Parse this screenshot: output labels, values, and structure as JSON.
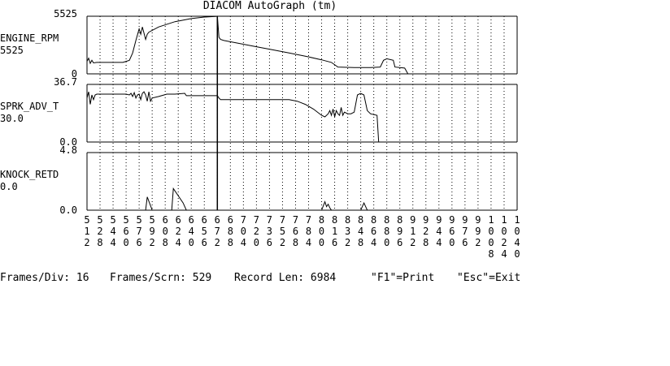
{
  "window": {
    "title": "DIACOM AutoGraph (tm)"
  },
  "status_bar": {
    "frames_div": "Frames/Div: 16",
    "frames_scrn": "Frames/Scrn: 529",
    "record_len": "Record Len: 6984",
    "print_hint": "\"F1\"=Print",
    "exit_hint": "\"Esc\"=Exit"
  },
  "chart_data": {
    "type": "line",
    "title": "DIACOM AutoGraph (tm)",
    "x_ticks": [
      "512",
      "528",
      "544",
      "560",
      "576",
      "592",
      "608",
      "624",
      "640",
      "656",
      "672",
      "688",
      "704",
      "720",
      "736",
      "752",
      "768",
      "784",
      "800",
      "816",
      "832",
      "848",
      "864",
      "880",
      "896",
      "912",
      "928",
      "944",
      "960",
      "976",
      "992",
      "1008",
      "1024",
      "1040"
    ],
    "cursor_x": 672,
    "grid": "vertical dotted",
    "panels": [
      {
        "name": "ENGINE_RPM",
        "current": "5525",
        "ymax_label": "5525",
        "ymin_label": "0",
        "ylim": [
          0,
          5525
        ],
        "points": [
          [
            512,
            1200
          ],
          [
            514,
            1500
          ],
          [
            516,
            1000
          ],
          [
            518,
            1300
          ],
          [
            520,
            1050
          ],
          [
            524,
            1100
          ],
          [
            528,
            1100
          ],
          [
            544,
            1100
          ],
          [
            556,
            1100
          ],
          [
            560,
            1200
          ],
          [
            564,
            1300
          ],
          [
            568,
            2000
          ],
          [
            572,
            3200
          ],
          [
            576,
            4300
          ],
          [
            578,
            3800
          ],
          [
            580,
            4500
          ],
          [
            582,
            3900
          ],
          [
            584,
            3300
          ],
          [
            586,
            3800
          ],
          [
            588,
            4000
          ],
          [
            600,
            4500
          ],
          [
            620,
            5000
          ],
          [
            640,
            5300
          ],
          [
            656,
            5450
          ],
          [
            670,
            5500
          ],
          [
            672,
            5525
          ],
          [
            674,
            3500
          ],
          [
            676,
            3300
          ],
          [
            680,
            3200
          ],
          [
            700,
            2900
          ],
          [
            720,
            2600
          ],
          [
            740,
            2300
          ],
          [
            760,
            2000
          ],
          [
            780,
            1700
          ],
          [
            800,
            1350
          ],
          [
            812,
            1100
          ],
          [
            820,
            650
          ],
          [
            840,
            600
          ],
          [
            860,
            600
          ],
          [
            872,
            650
          ],
          [
            876,
            1300
          ],
          [
            880,
            1450
          ],
          [
            888,
            1300
          ],
          [
            890,
            650
          ],
          [
            896,
            600
          ],
          [
            902,
            550
          ],
          [
            906,
            0
          ],
          [
            912,
            0
          ],
          [
            1040,
            0
          ]
        ]
      },
      {
        "name": "SPRK_ADV_T",
        "current": "30.0",
        "ymax_label": "36.7",
        "ymin_label": "0.0",
        "ylim": [
          0,
          36.7
        ],
        "points": [
          [
            512,
            28
          ],
          [
            514,
            32
          ],
          [
            516,
            24
          ],
          [
            518,
            30
          ],
          [
            520,
            27
          ],
          [
            522,
            30
          ],
          [
            524,
            30.5
          ],
          [
            540,
            30.5
          ],
          [
            560,
            30.5
          ],
          [
            564,
            30
          ],
          [
            566,
            31
          ],
          [
            568,
            29
          ],
          [
            570,
            31.5
          ],
          [
            572,
            28
          ],
          [
            574,
            30
          ],
          [
            576,
            30.5
          ],
          [
            578,
            27
          ],
          [
            580,
            31
          ],
          [
            582,
            32
          ],
          [
            584,
            30
          ],
          [
            586,
            26
          ],
          [
            588,
            32
          ],
          [
            590,
            26
          ],
          [
            592,
            28
          ],
          [
            600,
            29
          ],
          [
            610,
            30.5
          ],
          [
            620,
            30.5
          ],
          [
            632,
            31
          ],
          [
            634,
            29.5
          ],
          [
            650,
            29.5
          ],
          [
            672,
            29.5
          ],
          [
            674,
            28
          ],
          [
            676,
            27
          ],
          [
            680,
            27
          ],
          [
            700,
            27
          ],
          [
            720,
            27
          ],
          [
            740,
            27
          ],
          [
            760,
            27
          ],
          [
            770,
            26
          ],
          [
            780,
            24
          ],
          [
            790,
            21
          ],
          [
            800,
            17
          ],
          [
            804,
            16
          ],
          [
            808,
            18
          ],
          [
            810,
            20
          ],
          [
            812,
            17
          ],
          [
            814,
            21
          ],
          [
            816,
            16
          ],
          [
            818,
            20
          ],
          [
            820,
            18
          ],
          [
            822,
            17
          ],
          [
            824,
            22
          ],
          [
            826,
            17
          ],
          [
            828,
            19
          ],
          [
            832,
            18
          ],
          [
            836,
            18
          ],
          [
            840,
            19
          ],
          [
            844,
            30
          ],
          [
            848,
            31
          ],
          [
            852,
            30
          ],
          [
            856,
            20
          ],
          [
            860,
            18
          ],
          [
            868,
            17
          ],
          [
            870,
            0
          ],
          [
            880,
            0
          ],
          [
            1040,
            0
          ]
        ]
      },
      {
        "name": "KNOCK_RETD",
        "current": "0.0",
        "ymax_label": "4.8",
        "ymin_label": "0.0",
        "ylim": [
          0,
          4.8
        ],
        "points": [
          [
            512,
            0
          ],
          [
            584,
            0
          ],
          [
            586,
            1.1
          ],
          [
            592,
            0
          ],
          [
            608,
            0
          ],
          [
            616,
            0
          ],
          [
            618,
            1.8
          ],
          [
            630,
            0.6
          ],
          [
            634,
            0
          ],
          [
            672,
            0
          ],
          [
            800,
            0
          ],
          [
            804,
            0.7
          ],
          [
            806,
            0.3
          ],
          [
            808,
            0.5
          ],
          [
            810,
            0.2
          ],
          [
            812,
            0
          ],
          [
            848,
            0
          ],
          [
            852,
            0.6
          ],
          [
            856,
            0
          ],
          [
            1040,
            0
          ]
        ]
      }
    ]
  }
}
